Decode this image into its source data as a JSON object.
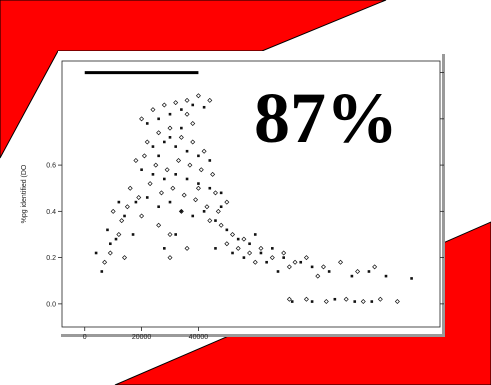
{
  "theme": {
    "slide_red": "#ff0000",
    "slide_background": "#ffffff",
    "mark_color": "#111111",
    "axis_color": "#222222"
  },
  "headline": "87%",
  "chart_data": {
    "type": "scatter",
    "title": "",
    "xlabel": "",
    "ylabel": "%pg identified (DO",
    "xlim": [
      -8000,
      125000
    ],
    "ylim": [
      -0.1,
      1.05
    ],
    "x_ticks": [
      0,
      20000,
      40000
    ],
    "x_tick_labels": [
      "0",
      "20000",
      "40000"
    ],
    "y_ticks": [
      0.0,
      0.2,
      0.4,
      0.6
    ],
    "y_tick_labels": [
      "0.0",
      "0.2",
      "0.4",
      "0.6"
    ],
    "grid": false,
    "legend": "none",
    "top_line": {
      "x_start": 0,
      "x_end": 40000,
      "y": 1.0
    },
    "series": [
      {
        "marker": "diamond-open",
        "points": [
          [
            20000,
            0.8
          ],
          [
            24000,
            0.84
          ],
          [
            28000,
            0.86
          ],
          [
            32000,
            0.87
          ],
          [
            36000,
            0.88
          ],
          [
            40000,
            0.9
          ],
          [
            44000,
            0.88
          ],
          [
            22000,
            0.7
          ],
          [
            26000,
            0.74
          ],
          [
            30000,
            0.76
          ],
          [
            34000,
            0.72
          ],
          [
            38000,
            0.7
          ],
          [
            42000,
            0.66
          ],
          [
            18000,
            0.62
          ],
          [
            21000,
            0.64
          ],
          [
            25000,
            0.6
          ],
          [
            29000,
            0.58
          ],
          [
            33000,
            0.62
          ],
          [
            37000,
            0.6
          ],
          [
            41000,
            0.58
          ],
          [
            45000,
            0.56
          ],
          [
            16000,
            0.5
          ],
          [
            19000,
            0.46
          ],
          [
            23000,
            0.52
          ],
          [
            27000,
            0.48
          ],
          [
            31000,
            0.5
          ],
          [
            35000,
            0.47
          ],
          [
            39000,
            0.45
          ],
          [
            43000,
            0.42
          ],
          [
            47000,
            0.4
          ],
          [
            10000,
            0.4
          ],
          [
            13000,
            0.36
          ],
          [
            15000,
            0.42
          ],
          [
            20000,
            0.38
          ],
          [
            26000,
            0.34
          ],
          [
            30000,
            0.3
          ],
          [
            44000,
            0.36
          ],
          [
            48000,
            0.34
          ],
          [
            52000,
            0.3
          ],
          [
            56000,
            0.28
          ],
          [
            50000,
            0.26
          ],
          [
            54000,
            0.24
          ],
          [
            58000,
            0.22
          ],
          [
            62000,
            0.24
          ],
          [
            66000,
            0.2
          ],
          [
            70000,
            0.22
          ],
          [
            74000,
            0.18
          ],
          [
            78000,
            0.2
          ],
          [
            84000,
            0.16
          ],
          [
            90000,
            0.18
          ],
          [
            96000,
            0.14
          ],
          [
            102000,
            0.16
          ],
          [
            9000,
            0.22
          ],
          [
            14000,
            0.2
          ],
          [
            12000,
            0.3
          ],
          [
            7000,
            0.18
          ],
          [
            60000,
            0.18
          ],
          [
            72000,
            0.16
          ],
          [
            82000,
            0.12
          ],
          [
            72000,
            0.02
          ],
          [
            78000,
            0.02
          ],
          [
            85000,
            0.01
          ],
          [
            92000,
            0.02
          ],
          [
            98000,
            0.01
          ],
          [
            104000,
            0.02
          ],
          [
            110000,
            0.01
          ],
          [
            30000,
            0.2
          ],
          [
            36000,
            0.24
          ],
          [
            34000,
            0.4
          ],
          [
            40000,
            0.5
          ],
          [
            46000,
            0.48
          ],
          [
            50000,
            0.44
          ],
          [
            38000,
            0.78
          ],
          [
            36000,
            0.82
          ]
        ]
      },
      {
        "marker": "square-filled",
        "points": [
          [
            22000,
            0.78
          ],
          [
            26000,
            0.8
          ],
          [
            30000,
            0.82
          ],
          [
            34000,
            0.84
          ],
          [
            38000,
            0.86
          ],
          [
            42000,
            0.85
          ],
          [
            24000,
            0.68
          ],
          [
            28000,
            0.7
          ],
          [
            32000,
            0.68
          ],
          [
            36000,
            0.66
          ],
          [
            40000,
            0.64
          ],
          [
            44000,
            0.62
          ],
          [
            20000,
            0.58
          ],
          [
            24000,
            0.56
          ],
          [
            28000,
            0.54
          ],
          [
            32000,
            0.56
          ],
          [
            36000,
            0.54
          ],
          [
            40000,
            0.52
          ],
          [
            44000,
            0.5
          ],
          [
            48000,
            0.48
          ],
          [
            18000,
            0.44
          ],
          [
            22000,
            0.46
          ],
          [
            26000,
            0.42
          ],
          [
            30000,
            0.44
          ],
          [
            34000,
            0.4
          ],
          [
            38000,
            0.38
          ],
          [
            42000,
            0.4
          ],
          [
            46000,
            0.36
          ],
          [
            50000,
            0.32
          ],
          [
            54000,
            0.28
          ],
          [
            58000,
            0.26
          ],
          [
            62000,
            0.22
          ],
          [
            66000,
            0.24
          ],
          [
            70000,
            0.2
          ],
          [
            76000,
            0.18
          ],
          [
            80000,
            0.16
          ],
          [
            8000,
            0.32
          ],
          [
            11000,
            0.28
          ],
          [
            14000,
            0.38
          ],
          [
            17000,
            0.3
          ],
          [
            12000,
            0.44
          ],
          [
            9000,
            0.26
          ],
          [
            6000,
            0.14
          ],
          [
            4000,
            0.22
          ],
          [
            56000,
            0.2
          ],
          [
            64000,
            0.18
          ],
          [
            68000,
            0.14
          ],
          [
            86000,
            0.14
          ],
          [
            94000,
            0.12
          ],
          [
            100000,
            0.14
          ],
          [
            106000,
            0.12
          ],
          [
            115000,
            0.11
          ],
          [
            73000,
            0.01
          ],
          [
            80000,
            0.01
          ],
          [
            88000,
            0.02
          ],
          [
            95000,
            0.01
          ],
          [
            101000,
            0.01
          ],
          [
            28000,
            0.24
          ],
          [
            32000,
            0.3
          ],
          [
            46000,
            0.24
          ],
          [
            52000,
            0.22
          ],
          [
            60000,
            0.3
          ],
          [
            34000,
            0.76
          ],
          [
            30000,
            0.72
          ],
          [
            26000,
            0.64
          ],
          [
            48000,
            0.42
          ]
        ]
      }
    ]
  }
}
